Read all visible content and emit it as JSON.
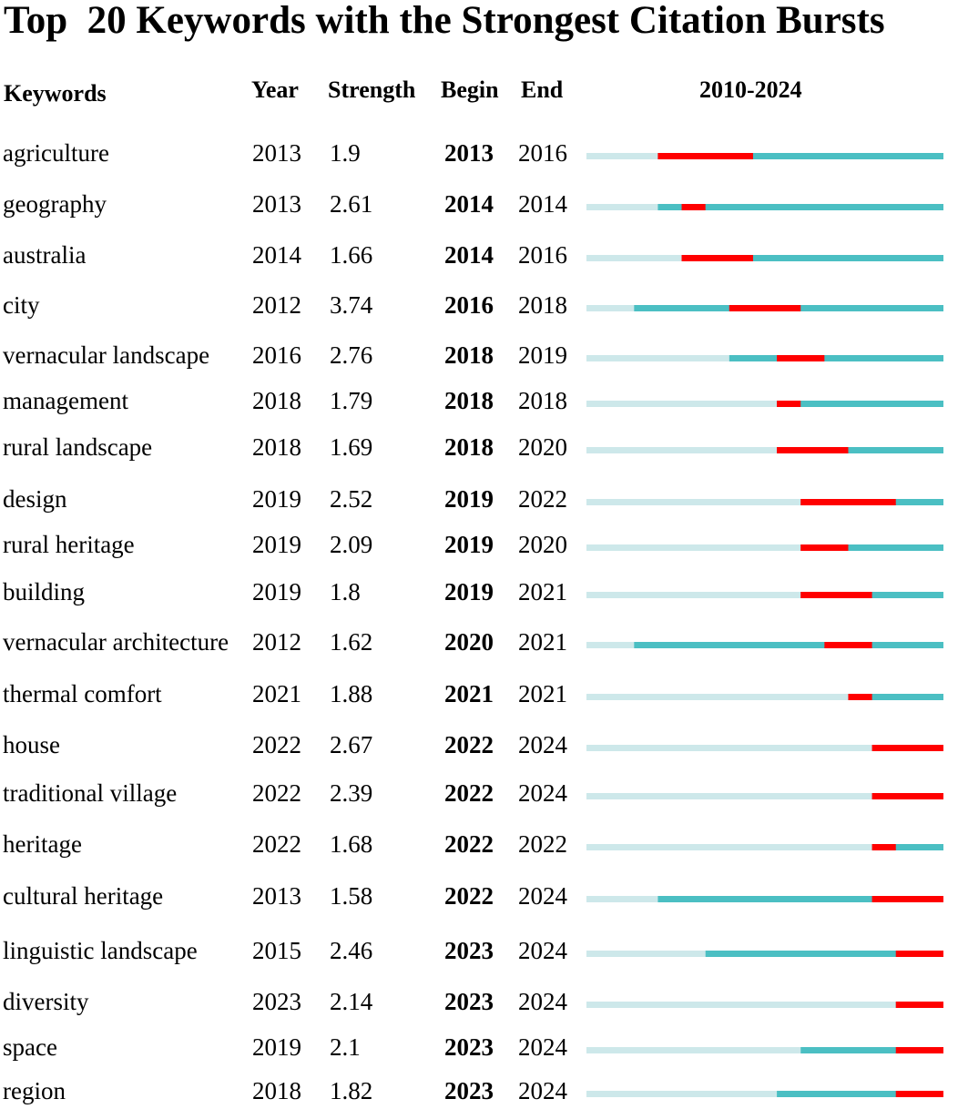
{
  "title": "Top  20 Keywords with the Strongest Citation Bursts",
  "headers": {
    "keywords": "Keywords",
    "year": "Year",
    "strength": "Strength",
    "begin": "Begin",
    "end": "End",
    "range": "2010-2024"
  },
  "colors": {
    "before": "#cde8ea",
    "active": "#4bbfc3",
    "burst": "#ff0000"
  },
  "chart_data": {
    "type": "table",
    "timeline_start": 2010,
    "timeline_end": 2024,
    "rows": [
      {
        "keyword": "agriculture",
        "year": 2013,
        "strength": "1.9",
        "begin": 2013,
        "end": 2016
      },
      {
        "keyword": "geography",
        "year": 2013,
        "strength": "2.61",
        "begin": 2014,
        "end": 2014
      },
      {
        "keyword": "australia",
        "year": 2014,
        "strength": "1.66",
        "begin": 2014,
        "end": 2016
      },
      {
        "keyword": "city",
        "year": 2012,
        "strength": "3.74",
        "begin": 2016,
        "end": 2018
      },
      {
        "keyword": "vernacular landscape",
        "year": 2016,
        "strength": "2.76",
        "begin": 2018,
        "end": 2019
      },
      {
        "keyword": "management",
        "year": 2018,
        "strength": "1.79",
        "begin": 2018,
        "end": 2018
      },
      {
        "keyword": "rural landscape",
        "year": 2018,
        "strength": "1.69",
        "begin": 2018,
        "end": 2020
      },
      {
        "keyword": "design",
        "year": 2019,
        "strength": "2.52",
        "begin": 2019,
        "end": 2022
      },
      {
        "keyword": "rural heritage",
        "year": 2019,
        "strength": "2.09",
        "begin": 2019,
        "end": 2020
      },
      {
        "keyword": "building",
        "year": 2019,
        "strength": "1.8",
        "begin": 2019,
        "end": 2021
      },
      {
        "keyword": "vernacular architecture",
        "year": 2012,
        "strength": "1.62",
        "begin": 2020,
        "end": 2021
      },
      {
        "keyword": "thermal comfort",
        "year": 2021,
        "strength": "1.88",
        "begin": 2021,
        "end": 2021
      },
      {
        "keyword": "house",
        "year": 2022,
        "strength": "2.67",
        "begin": 2022,
        "end": 2024
      },
      {
        "keyword": "traditional village",
        "year": 2022,
        "strength": "2.39",
        "begin": 2022,
        "end": 2024
      },
      {
        "keyword": "heritage",
        "year": 2022,
        "strength": "1.68",
        "begin": 2022,
        "end": 2022
      },
      {
        "keyword": "cultural heritage",
        "year": 2013,
        "strength": "1.58",
        "begin": 2022,
        "end": 2024
      },
      {
        "keyword": "linguistic landscape",
        "year": 2015,
        "strength": "2.46",
        "begin": 2023,
        "end": 2024
      },
      {
        "keyword": "diversity",
        "year": 2023,
        "strength": "2.14",
        "begin": 2023,
        "end": 2024
      },
      {
        "keyword": "space",
        "year": 2019,
        "strength": "2.1",
        "begin": 2023,
        "end": 2024
      },
      {
        "keyword": "region",
        "year": 2018,
        "strength": "1.82",
        "begin": 2023,
        "end": 2024
      }
    ]
  }
}
